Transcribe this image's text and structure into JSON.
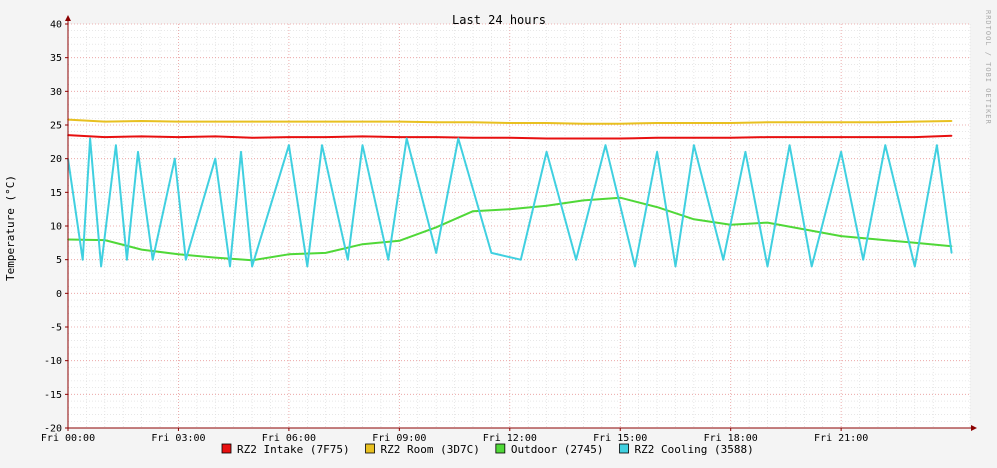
{
  "chart_data": {
    "type": "line",
    "title": "Last 24 hours",
    "ylabel": "Temperature (°C)",
    "xlabel": "",
    "watermark": "RRDTOOL / TOBI OETIKER",
    "ylim": [
      -20,
      40
    ],
    "yticks": [
      -20,
      -15,
      -10,
      -5,
      0,
      5,
      10,
      15,
      20,
      25,
      30,
      35,
      40
    ],
    "xlim_hours": [
      0,
      24.5
    ],
    "xticks": [
      {
        "hour": 0,
        "label": "Fri 00:00"
      },
      {
        "hour": 3,
        "label": "Fri 03:00"
      },
      {
        "hour": 6,
        "label": "Fri 06:00"
      },
      {
        "hour": 9,
        "label": "Fri 09:00"
      },
      {
        "hour": 12,
        "label": "Fri 12:00"
      },
      {
        "hour": 15,
        "label": "Fri 15:00"
      },
      {
        "hour": 18,
        "label": "Fri 18:00"
      },
      {
        "hour": 21,
        "label": "Fri 21:00"
      }
    ],
    "grid": true,
    "legend_position": "bottom",
    "colors": {
      "background": "#f4f4f4",
      "plot_background": "#ffffff",
      "major_grid": "#e89a9a",
      "minor_grid": "#d9d9d9",
      "axis": "#8b0000"
    },
    "series": [
      {
        "name": "RZ2 Intake (7F75)",
        "color": "#e81010",
        "x": [
          0,
          1,
          2,
          3,
          4,
          5,
          6,
          7,
          8,
          9,
          10,
          11,
          12,
          13,
          14,
          15,
          16,
          17,
          18,
          19,
          20,
          21,
          22,
          23,
          24
        ],
        "y": [
          23.5,
          23.2,
          23.3,
          23.2,
          23.3,
          23.1,
          23.2,
          23.2,
          23.3,
          23.2,
          23.2,
          23.1,
          23.1,
          23.0,
          23.0,
          23.0,
          23.1,
          23.1,
          23.1,
          23.2,
          23.2,
          23.2,
          23.2,
          23.2,
          23.4
        ]
      },
      {
        "name": "RZ2 Room (3D7C)",
        "color": "#e8c020",
        "x": [
          0,
          1,
          2,
          3,
          4,
          5,
          6,
          7,
          8,
          9,
          10,
          11,
          12,
          13,
          14,
          15,
          16,
          17,
          18,
          19,
          20,
          21,
          22,
          23,
          24
        ],
        "y": [
          25.8,
          25.5,
          25.6,
          25.5,
          25.5,
          25.5,
          25.5,
          25.5,
          25.5,
          25.5,
          25.4,
          25.4,
          25.3,
          25.3,
          25.2,
          25.2,
          25.3,
          25.3,
          25.3,
          25.4,
          25.4,
          25.4,
          25.4,
          25.5,
          25.6
        ]
      },
      {
        "name": "Outdoor (2745)",
        "color": "#50d838",
        "x": [
          0,
          1,
          2,
          3,
          4,
          5,
          6,
          7,
          8,
          9,
          10,
          11,
          12,
          13,
          14,
          15,
          16,
          17,
          18,
          19,
          20,
          21,
          22,
          23,
          24
        ],
        "y": [
          8.0,
          7.9,
          6.5,
          5.8,
          5.3,
          4.9,
          5.8,
          6.0,
          7.3,
          7.8,
          9.8,
          12.2,
          12.5,
          13.0,
          13.8,
          14.2,
          12.8,
          11.0,
          10.2,
          10.5,
          9.5,
          8.5,
          8.0,
          7.5,
          7.0
        ]
      },
      {
        "name": "RZ2 Cooling (3588)",
        "color": "#40d0e0",
        "x": [
          0,
          0.4,
          0.6,
          0.9,
          1.3,
          1.6,
          1.9,
          2.3,
          2.9,
          3.2,
          4.0,
          4.4,
          4.7,
          5.0,
          6.0,
          6.5,
          6.9,
          7.6,
          8.0,
          8.7,
          9.2,
          10.0,
          10.6,
          11.5,
          12.3,
          13.0,
          13.8,
          14.6,
          15.4,
          16.0,
          16.5,
          17.0,
          17.8,
          18.4,
          19.0,
          19.6,
          20.2,
          21.0,
          21.6,
          22.2,
          23.0,
          23.6,
          24.0
        ],
        "y": [
          20,
          5,
          23,
          4,
          22,
          5,
          21,
          5,
          20,
          5,
          20,
          4,
          21,
          4,
          22,
          4,
          22,
          5,
          22,
          5,
          23,
          6,
          23,
          6,
          5,
          21,
          5,
          22,
          4,
          21,
          4,
          22,
          5,
          21,
          4,
          22,
          4,
          21,
          5,
          22,
          4,
          22,
          6
        ]
      }
    ]
  }
}
